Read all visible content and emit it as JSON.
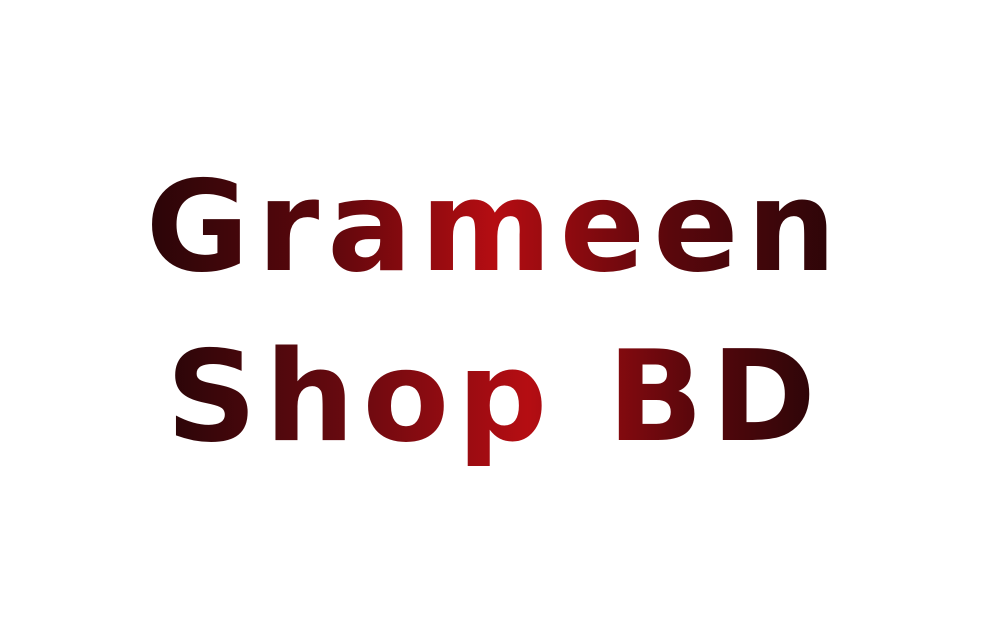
{
  "logo": {
    "line1": "Grameen",
    "line2": "Shop BD"
  },
  "colors": {
    "background": "#ffffff",
    "gradient_dark": "#2a0508",
    "gradient_mid": "#6e0a10",
    "gradient_bright": "#b50d12"
  }
}
